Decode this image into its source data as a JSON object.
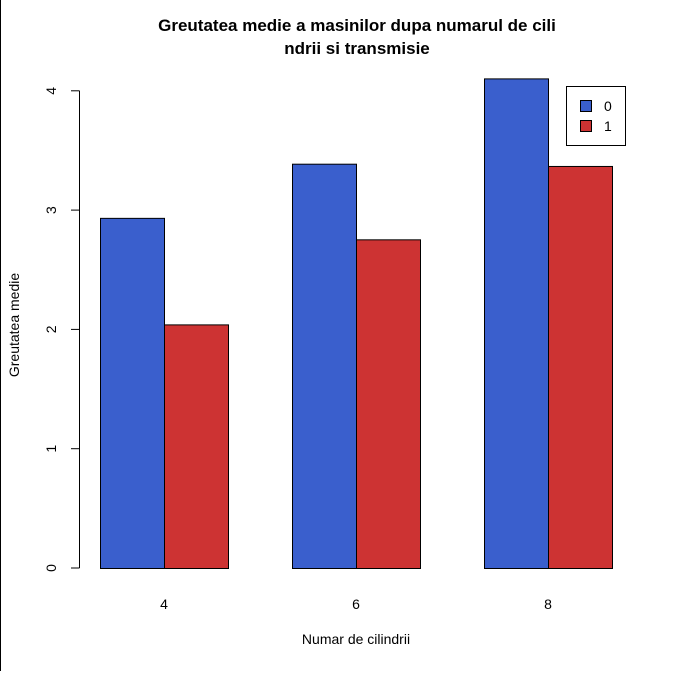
{
  "chart_data": {
    "type": "bar",
    "title_lines": [
      "Greutatea medie a masinilor dupa numarul de cili",
      "ndrii si transmisie"
    ],
    "xlabel": "Numar de cilindrii",
    "ylabel": "Greutatea medie",
    "categories": [
      "4",
      "6",
      "8"
    ],
    "series": [
      {
        "name": "0",
        "color": "#3A5FCD",
        "values": [
          2.935,
          3.389,
          4.104
        ]
      },
      {
        "name": "1",
        "color": "#CD3333",
        "values": [
          2.042,
          2.755,
          3.37
        ]
      }
    ],
    "yticks": [
      "0",
      "1",
      "2",
      "3",
      "4"
    ],
    "ylim": [
      0,
      4.104
    ],
    "grid": false,
    "legend_position": "top-right"
  }
}
